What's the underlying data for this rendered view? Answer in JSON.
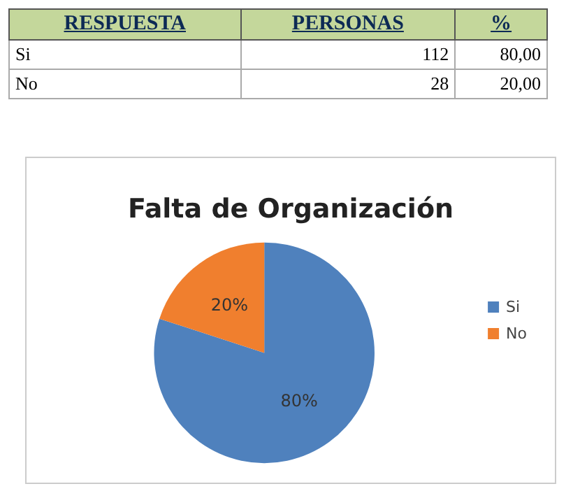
{
  "chart_data": [
    {
      "type": "other",
      "xlabel": "RESPUESTA",
      "categories": [
        "Si",
        "No"
      ],
      "series": [
        {
          "name": "PERSONAS",
          "values": [
            112,
            28
          ],
          "value_labels": [
            "112",
            "28"
          ]
        },
        {
          "name": "%",
          "values": [
            80,
            20
          ],
          "value_labels": [
            "80,00",
            "20,00"
          ]
        }
      ]
    },
    {
      "type": "pie",
      "title": "Falta de Organización",
      "categories": [
        "Si",
        "No"
      ],
      "values": [
        80,
        20
      ],
      "colors": [
        "#4f81bd",
        "#f07f2e"
      ],
      "value_labels": [
        "80%",
        "20%"
      ],
      "legend": "right"
    }
  ]
}
